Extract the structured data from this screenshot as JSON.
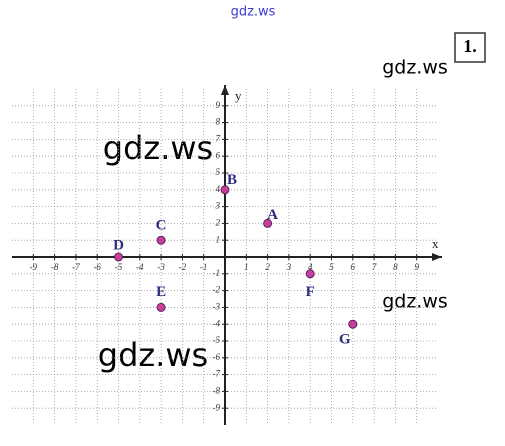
{
  "chart_data": {
    "type": "scatter",
    "x": [
      2,
      0,
      -3,
      -5,
      -3,
      4,
      6
    ],
    "y": [
      2,
      4,
      1,
      0,
      -3,
      -1,
      -4
    ],
    "labels": [
      "A",
      "B",
      "C",
      "D",
      "E",
      "F",
      "G"
    ],
    "color": "#c8409c",
    "xlabel": "x",
    "ylabel": "y",
    "xlim": [
      -10,
      10
    ],
    "ylim": [
      -10,
      10
    ],
    "xticks": [
      -9,
      -8,
      -7,
      -6,
      -5,
      -4,
      -3,
      -2,
      -1,
      1,
      2,
      3,
      4,
      5,
      6,
      7,
      8,
      9
    ],
    "yticks": [
      9,
      8,
      7,
      6,
      5,
      4,
      3,
      2,
      1,
      -1,
      -2,
      -3,
      -4,
      -5,
      -6,
      -7,
      -8,
      -9
    ],
    "grid": true
  },
  "exercise_number": "1.",
  "watermarks": [
    "gdz.ws",
    "gdz.ws",
    "gdz.ws",
    "gdz.ws",
    "gdz.ws"
  ]
}
